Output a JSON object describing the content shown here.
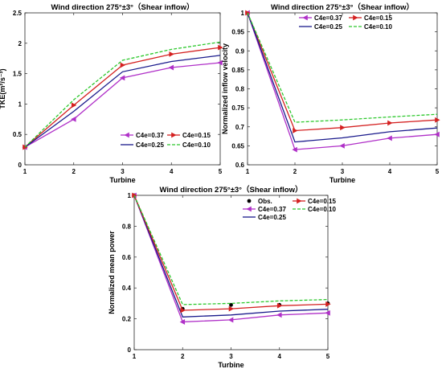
{
  "chart_data": [
    {
      "type": "line",
      "title": "Wind direction 275°±3°（Shear inflow）",
      "xlabel": "Turbine",
      "ylabel": "TKE(m²/s⁻²)",
      "xlim": [
        1,
        5
      ],
      "ylim": [
        0,
        2.5
      ],
      "x": [
        1,
        2,
        3,
        4,
        5
      ],
      "x_ticks": [
        "1",
        "2",
        "3",
        "4",
        "5"
      ],
      "y_ticks": [
        0,
        0.5,
        1,
        1.5,
        2,
        2.5
      ],
      "y_tick_labels": [
        "0",
        "0.5",
        "1",
        "1.5",
        "2",
        "2.5"
      ],
      "grid": false,
      "legend_position": "bottom-right",
      "series": [
        {
          "name": "C4e=0.37",
          "values": [
            0.29,
            0.75,
            1.43,
            1.6,
            1.68
          ],
          "color": "#b030c8",
          "marker": "triangle-left",
          "dash": ""
        },
        {
          "name": "C4e=0.15",
          "values": [
            0.29,
            0.98,
            1.64,
            1.82,
            1.93
          ],
          "color": "#d42020",
          "marker": "triangle-right",
          "dash": ""
        },
        {
          "name": "C4e=0.25",
          "values": [
            0.29,
            0.88,
            1.53,
            1.7,
            1.8
          ],
          "color": "#1a1a8c",
          "marker": "",
          "dash": ""
        },
        {
          "name": "C4e=0.10",
          "values": [
            0.29,
            1.07,
            1.72,
            1.9,
            2.02
          ],
          "color": "#2cc82c",
          "marker": "",
          "dash": "4,2"
        }
      ]
    },
    {
      "type": "line",
      "title": "Wind direction 275°±3°（Shear inflow）",
      "xlabel": "Turbine",
      "ylabel": "Normalized inflow velocity",
      "xlim": [
        1,
        5
      ],
      "ylim": [
        0.6,
        1
      ],
      "x": [
        1,
        2,
        3,
        4,
        5
      ],
      "x_ticks": [
        "1",
        "2",
        "3",
        "4",
        "5"
      ],
      "y_ticks": [
        0.6,
        0.65,
        0.7,
        0.75,
        0.8,
        0.85,
        0.9,
        0.95,
        1
      ],
      "y_tick_labels": [
        "0.6",
        "0.65",
        "0.7",
        "0.75",
        "0.8",
        "0.85",
        "0.9",
        "0.95",
        "1"
      ],
      "grid": false,
      "legend_position": "top-right",
      "series": [
        {
          "name": "C4e=0.37",
          "values": [
            1.0,
            0.64,
            0.65,
            0.67,
            0.68
          ],
          "color": "#b030c8",
          "marker": "triangle-left",
          "dash": ""
        },
        {
          "name": "C4e=0.15",
          "values": [
            1.0,
            0.69,
            0.698,
            0.71,
            0.718
          ],
          "color": "#d42020",
          "marker": "triangle-right",
          "dash": ""
        },
        {
          "name": "C4e=0.25",
          "values": [
            1.0,
            0.66,
            0.671,
            0.687,
            0.697
          ],
          "color": "#1a1a8c",
          "marker": "",
          "dash": ""
        },
        {
          "name": "C4e=0.10",
          "values": [
            1.0,
            0.712,
            0.718,
            0.726,
            0.733
          ],
          "color": "#2cc82c",
          "marker": "",
          "dash": "4,2"
        }
      ]
    },
    {
      "type": "line",
      "title": "Wind direction 275°±3°（Shear inflow）",
      "xlabel": "Turbine",
      "ylabel": "Normalized mean power",
      "xlim": [
        1,
        5
      ],
      "ylim": [
        0,
        1
      ],
      "x": [
        1,
        2,
        3,
        4,
        5
      ],
      "x_ticks": [
        "1",
        "2",
        "3",
        "4",
        "5"
      ],
      "y_ticks": [
        0,
        0.2,
        0.4,
        0.6,
        0.8,
        1
      ],
      "y_tick_labels": [
        "0",
        "0.2",
        "0.4",
        "0.6",
        "0.8",
        "1"
      ],
      "grid": false,
      "legend_position": "top-right",
      "series": [
        {
          "name": "Obs.",
          "values": [
            1.0,
            0.265,
            0.29,
            0.29,
            0.3
          ],
          "color": "#000000",
          "marker": "dot",
          "dash": "",
          "line": false
        },
        {
          "name": "C4e=0.37",
          "values": [
            1.0,
            0.18,
            0.193,
            0.225,
            0.238
          ],
          "color": "#b030c8",
          "marker": "triangle-left",
          "dash": ""
        },
        {
          "name": "C4e=0.25",
          "values": [
            1.0,
            0.212,
            0.225,
            0.25,
            0.262
          ],
          "color": "#1a1a8c",
          "marker": "",
          "dash": ""
        },
        {
          "name": "C4e=0.15",
          "values": [
            1.0,
            0.255,
            0.265,
            0.285,
            0.295
          ],
          "color": "#d42020",
          "marker": "triangle-right",
          "dash": ""
        },
        {
          "name": "C4e=0.10",
          "values": [
            1.0,
            0.292,
            0.3,
            0.316,
            0.325
          ],
          "color": "#2cc82c",
          "marker": "",
          "dash": "4,2"
        }
      ]
    }
  ]
}
